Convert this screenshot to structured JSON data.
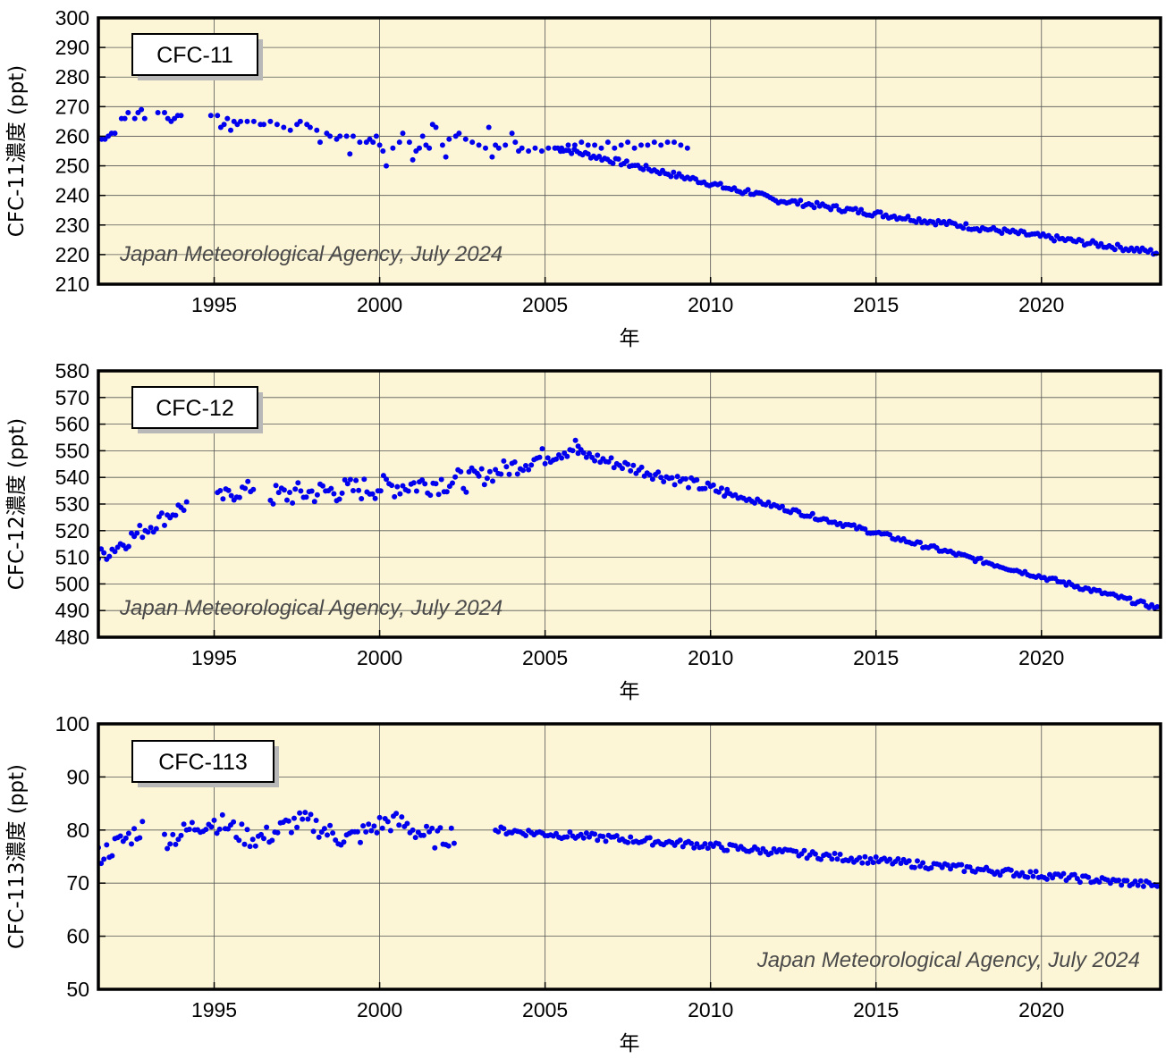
{
  "chart_data": [
    {
      "type": "scatter",
      "series": [
        {
          "name": "CFC-11",
          "color": "#0000ee",
          "points": [
            [
              1991.6,
              259
            ],
            [
              1991.7,
              259
            ],
            [
              1991.8,
              260
            ],
            [
              1991.9,
              261
            ],
            [
              1992.0,
              261
            ],
            [
              1992.2,
              266
            ],
            [
              1992.3,
              266
            ],
            [
              1992.4,
              268
            ],
            [
              1992.6,
              266
            ],
            [
              1992.7,
              268
            ],
            [
              1992.8,
              269
            ],
            [
              1992.9,
              266
            ],
            [
              1993.3,
              268
            ],
            [
              1993.5,
              268
            ],
            [
              1993.6,
              266
            ],
            [
              1993.7,
              265
            ],
            [
              1993.8,
              266
            ],
            [
              1993.9,
              267
            ],
            [
              1994.0,
              267
            ],
            [
              1994.9,
              267
            ],
            [
              1995.1,
              267
            ],
            [
              1995.2,
              263
            ],
            [
              1995.3,
              264
            ],
            [
              1995.4,
              266
            ],
            [
              1995.5,
              262
            ],
            [
              1995.6,
              265
            ],
            [
              1995.7,
              264
            ],
            [
              1995.8,
              265
            ],
            [
              1996.0,
              265
            ],
            [
              1996.2,
              265
            ],
            [
              1996.4,
              264
            ],
            [
              1996.5,
              264
            ],
            [
              1996.7,
              265
            ],
            [
              1996.9,
              264
            ],
            [
              1997.1,
              263
            ],
            [
              1997.3,
              262
            ],
            [
              1997.5,
              264
            ],
            [
              1997.6,
              265
            ],
            [
              1997.8,
              264
            ],
            [
              1997.9,
              263
            ],
            [
              1998.1,
              262
            ],
            [
              1998.2,
              258
            ],
            [
              1998.4,
              261
            ],
            [
              1998.5,
              260
            ],
            [
              1998.7,
              259
            ],
            [
              1998.8,
              260
            ],
            [
              1999.0,
              260
            ],
            [
              1999.1,
              254
            ],
            [
              1999.2,
              260
            ],
            [
              1999.4,
              258
            ],
            [
              1999.6,
              258
            ],
            [
              1999.7,
              259
            ],
            [
              1999.8,
              258
            ],
            [
              1999.9,
              260
            ],
            [
              2000.0,
              257
            ],
            [
              2000.1,
              255
            ],
            [
              2000.2,
              250
            ],
            [
              2000.4,
              256
            ],
            [
              2000.6,
              258
            ],
            [
              2000.7,
              261
            ],
            [
              2000.9,
              258
            ],
            [
              2001.0,
              252
            ],
            [
              2001.1,
              255
            ],
            [
              2001.2,
              256
            ],
            [
              2001.3,
              260
            ],
            [
              2001.4,
              257
            ],
            [
              2001.5,
              256
            ],
            [
              2001.6,
              264
            ],
            [
              2001.7,
              263
            ],
            [
              2001.9,
              257
            ],
            [
              2002.0,
              253
            ],
            [
              2002.1,
              259
            ],
            [
              2002.3,
              260
            ],
            [
              2002.4,
              261
            ],
            [
              2002.6,
              259
            ],
            [
              2002.8,
              258
            ],
            [
              2003.0,
              257
            ],
            [
              2003.2,
              256
            ],
            [
              2003.3,
              263
            ],
            [
              2003.4,
              253
            ],
            [
              2003.5,
              257
            ],
            [
              2003.6,
              256
            ],
            [
              2003.8,
              257
            ],
            [
              2004.0,
              261
            ],
            [
              2004.1,
              258
            ],
            [
              2004.2,
              255
            ],
            [
              2004.3,
              256
            ],
            [
              2004.5,
              255
            ],
            [
              2004.7,
              256
            ],
            [
              2004.9,
              255
            ],
            [
              2005.1,
              256
            ],
            [
              2005.3,
              256
            ],
            [
              2005.5,
              256
            ],
            [
              2005.7,
              257
            ],
            [
              2005.9,
              257
            ],
            [
              2006.1,
              258
            ],
            [
              2006.3,
              257
            ],
            [
              2006.5,
              257
            ],
            [
              2006.7,
              256
            ],
            [
              2006.9,
              258
            ],
            [
              2007.1,
              256
            ],
            [
              2007.3,
              257
            ],
            [
              2007.5,
              258
            ],
            [
              2007.7,
              256
            ],
            [
              2007.9,
              257
            ],
            [
              2008.1,
              257
            ],
            [
              2008.3,
              258
            ],
            [
              2008.5,
              257
            ],
            [
              2008.7,
              258
            ],
            [
              2008.9,
              258
            ],
            [
              2009.1,
              257
            ],
            [
              2009.3,
              256
            ]
          ]
        }
      ]
    }
  ],
  "x_ticks": [
    "1995",
    "2000",
    "2005",
    "2010",
    "2015",
    "2020"
  ],
  "x_axis_title": "年",
  "credit_text": "Japan Meteorological Agency, July 2024",
  "panels": [
    {
      "label": "CFC-11",
      "ylabel": "CFC-11濃度 (ppt)",
      "y_ticks": [
        "300",
        "290",
        "280",
        "270",
        "260",
        "250",
        "240",
        "230",
        "220",
        "210"
      ],
      "ylim": [
        210,
        300
      ]
    },
    {
      "label": "CFC-12",
      "ylabel": "CFC-12濃度 (ppt)",
      "y_ticks": [
        "580",
        "570",
        "560",
        "550",
        "540",
        "530",
        "520",
        "510",
        "500",
        "490",
        "480"
      ],
      "ylim": [
        480,
        580
      ]
    },
    {
      "label": "CFC-113",
      "ylabel": "CFC-113濃度 (ppt)",
      "y_ticks": [
        "100",
        "90",
        "80",
        "70",
        "60",
        "50"
      ],
      "ylim": [
        50,
        100
      ]
    }
  ],
  "colors": {
    "plot_bg": "#fdf6d6",
    "marker": "#0000ee",
    "grid": "#555555",
    "frame": "#000000"
  }
}
